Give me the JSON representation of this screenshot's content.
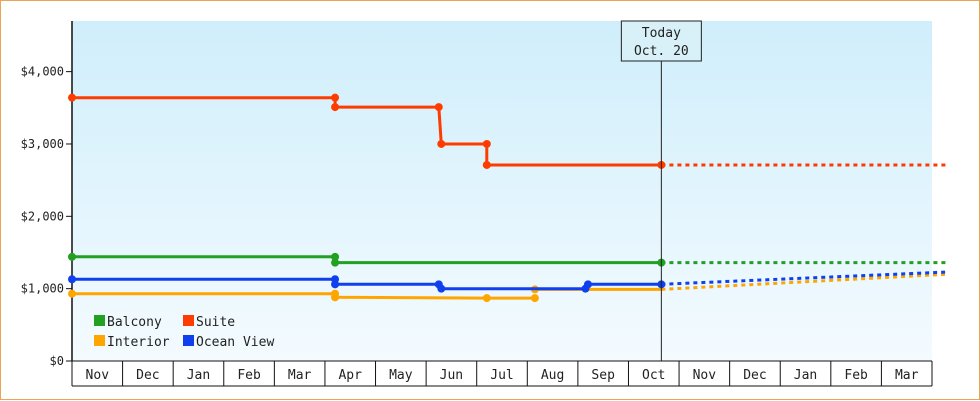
{
  "chart_data": {
    "type": "line",
    "title": "",
    "xlabel": "",
    "ylabel": "",
    "x_start": "2021-11-01",
    "x_end": "2022-03-31",
    "xlim_months": [
      "Nov",
      "Dec",
      "Jan",
      "Feb",
      "Mar",
      "Apr",
      "May",
      "Jun",
      "Jul",
      "Aug",
      "Sep",
      "Oct",
      "Nov",
      "Dec",
      "Jan",
      "Feb",
      "Mar"
    ],
    "ylim": [
      0,
      4700
    ],
    "y_ticks": [
      {
        "value": 0,
        "label": "$0"
      },
      {
        "value": 1000,
        "label": "$1,000"
      },
      {
        "value": 2000,
        "label": "$2,000"
      },
      {
        "value": 3000,
        "label": "$3,000"
      },
      {
        "value": 4000,
        "label": "$4,000"
      }
    ],
    "today": {
      "line1": "Today",
      "line2": "Oct. 20",
      "x": 11.65
    },
    "grid": false,
    "legend_position": "bottom-left",
    "series": [
      {
        "name": "Balcony",
        "color": "#22a022",
        "points": [
          [
            0.0,
            1440
          ],
          [
            5.2,
            1440
          ],
          [
            5.2,
            1360
          ],
          [
            11.65,
            1360
          ]
        ],
        "marker_points": [
          [
            0.0,
            1440
          ],
          [
            5.2,
            1440
          ],
          [
            5.2,
            1360
          ],
          [
            11.65,
            1360
          ]
        ],
        "projection": [
          [
            11.65,
            1360
          ],
          [
            17.3,
            1360
          ]
        ]
      },
      {
        "name": "Suite",
        "color": "#ff3c00",
        "points": [
          [
            0.0,
            3640
          ],
          [
            5.2,
            3640
          ],
          [
            5.2,
            3510
          ],
          [
            7.25,
            3510
          ],
          [
            7.3,
            3000
          ],
          [
            8.2,
            3000
          ],
          [
            8.2,
            2710
          ],
          [
            11.65,
            2710
          ]
        ],
        "marker_points": [
          [
            0.0,
            3640
          ],
          [
            5.2,
            3640
          ],
          [
            5.2,
            3510
          ],
          [
            7.25,
            3510
          ],
          [
            7.3,
            3000
          ],
          [
            8.2,
            3000
          ],
          [
            8.2,
            2710
          ],
          [
            11.65,
            2710
          ]
        ],
        "projection": [
          [
            11.65,
            2710
          ],
          [
            17.3,
            2710
          ]
        ]
      },
      {
        "name": "Interior",
        "color": "#ffa500",
        "points": [
          [
            0.0,
            930
          ],
          [
            5.2,
            930
          ],
          [
            5.2,
            880
          ],
          [
            8.2,
            870
          ],
          [
            9.15,
            870
          ]
        ],
        "marker_points": [
          [
            0.0,
            930
          ],
          [
            5.2,
            930
          ],
          [
            5.2,
            880
          ],
          [
            8.2,
            870
          ],
          [
            9.15,
            870
          ],
          [
            9.15,
            990
          ]
        ],
        "segment2": [
          [
            9.15,
            990
          ],
          [
            11.65,
            990
          ]
        ],
        "projection": [
          [
            11.65,
            990
          ],
          [
            17.3,
            1200
          ]
        ]
      },
      {
        "name": "Ocean View",
        "color": "#1040ee",
        "points": [
          [
            0.0,
            1130
          ],
          [
            5.2,
            1130
          ],
          [
            5.2,
            1060
          ],
          [
            7.25,
            1060
          ],
          [
            7.3,
            1000
          ],
          [
            10.15,
            1000
          ],
          [
            10.2,
            1060
          ],
          [
            11.65,
            1060
          ]
        ],
        "marker_points": [
          [
            0.0,
            1130
          ],
          [
            5.2,
            1130
          ],
          [
            5.2,
            1060
          ],
          [
            7.25,
            1060
          ],
          [
            7.3,
            1000
          ],
          [
            10.15,
            1000
          ],
          [
            10.2,
            1060
          ],
          [
            11.65,
            1060
          ]
        ],
        "projection": [
          [
            11.65,
            1060
          ],
          [
            17.3,
            1230
          ]
        ]
      }
    ]
  }
}
